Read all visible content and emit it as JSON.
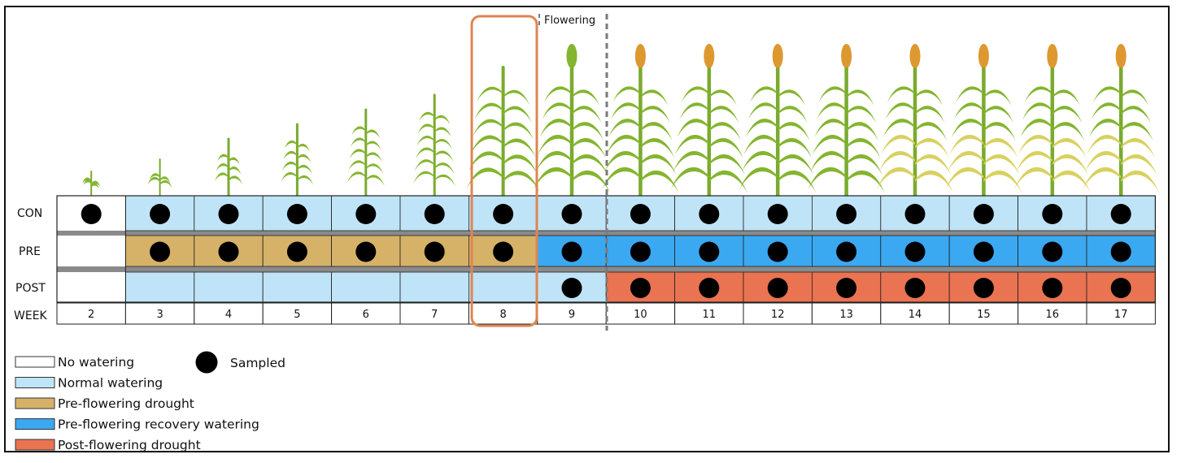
{
  "flowering_label": "Flowering",
  "row_labels": {
    "con": "CON",
    "pre": "PRE",
    "post": "POST",
    "week": "WEEK"
  },
  "weeks": [
    "2",
    "3",
    "4",
    "5",
    "6",
    "7",
    "8",
    "9",
    "10",
    "11",
    "12",
    "13",
    "14",
    "15",
    "16",
    "17"
  ],
  "highlighted_week": "8",
  "flowering_after_week": "9",
  "colors": {
    "no_watering": "#ffffff",
    "normal_watering": "#bfe4f7",
    "pre_flowering_drought": "#d6b268",
    "pre_flowering_recovery": "#3ba8f2",
    "post_flowering_drought": "#ea7352",
    "highlight": "#de8552",
    "stem": "#7aaa2e",
    "leaf": "#84b52f",
    "yellow_leaf": "#d8d160",
    "panicle": "#de9830"
  },
  "treatments": {
    "con": [
      "no_watering",
      "normal_watering",
      "normal_watering",
      "normal_watering",
      "normal_watering",
      "normal_watering",
      "normal_watering",
      "normal_watering",
      "normal_watering",
      "normal_watering",
      "normal_watering",
      "normal_watering",
      "normal_watering",
      "normal_watering",
      "normal_watering",
      "normal_watering"
    ],
    "pre": [
      "no_watering",
      "pre_flowering_drought",
      "pre_flowering_drought",
      "pre_flowering_drought",
      "pre_flowering_drought",
      "pre_flowering_drought",
      "pre_flowering_drought",
      "pre_flowering_recovery",
      "pre_flowering_recovery",
      "pre_flowering_recovery",
      "pre_flowering_recovery",
      "pre_flowering_recovery",
      "pre_flowering_recovery",
      "pre_flowering_recovery",
      "pre_flowering_recovery",
      "pre_flowering_recovery"
    ],
    "post": [
      "no_watering",
      "normal_watering",
      "normal_watering",
      "normal_watering",
      "normal_watering",
      "normal_watering",
      "normal_watering",
      "normal_watering",
      "post_flowering_drought",
      "post_flowering_drought",
      "post_flowering_drought",
      "post_flowering_drought",
      "post_flowering_drought",
      "post_flowering_drought",
      "post_flowering_drought",
      "post_flowering_drought"
    ]
  },
  "sampled": {
    "con": [
      true,
      true,
      true,
      true,
      true,
      true,
      true,
      true,
      true,
      true,
      true,
      true,
      true,
      true,
      true,
      true
    ],
    "pre": [
      false,
      true,
      true,
      true,
      true,
      true,
      true,
      true,
      true,
      true,
      true,
      true,
      true,
      true,
      true,
      true
    ],
    "post": [
      false,
      false,
      false,
      false,
      false,
      false,
      false,
      true,
      true,
      true,
      true,
      true,
      true,
      true,
      true,
      true
    ]
  },
  "plant_stages": [
    "seedling",
    "seedling",
    "young",
    "young",
    "young",
    "young",
    "vegetative",
    "flag",
    "mature",
    "mature",
    "mature",
    "mature",
    "mature-yellowing",
    "mature-yellowing",
    "mature-yellowing",
    "mature-yellowing"
  ],
  "legend": [
    {
      "key": "no_watering",
      "label": "No watering"
    },
    {
      "key": "normal_watering",
      "label": "Normal watering"
    },
    {
      "key": "pre_flowering_drought",
      "label": "Pre-flowering drought"
    },
    {
      "key": "pre_flowering_recovery",
      "label": "Pre-flowering recovery watering"
    },
    {
      "key": "post_flowering_drought",
      "label": "Post-flowering drought"
    }
  ],
  "sampled_label": "Sampled"
}
